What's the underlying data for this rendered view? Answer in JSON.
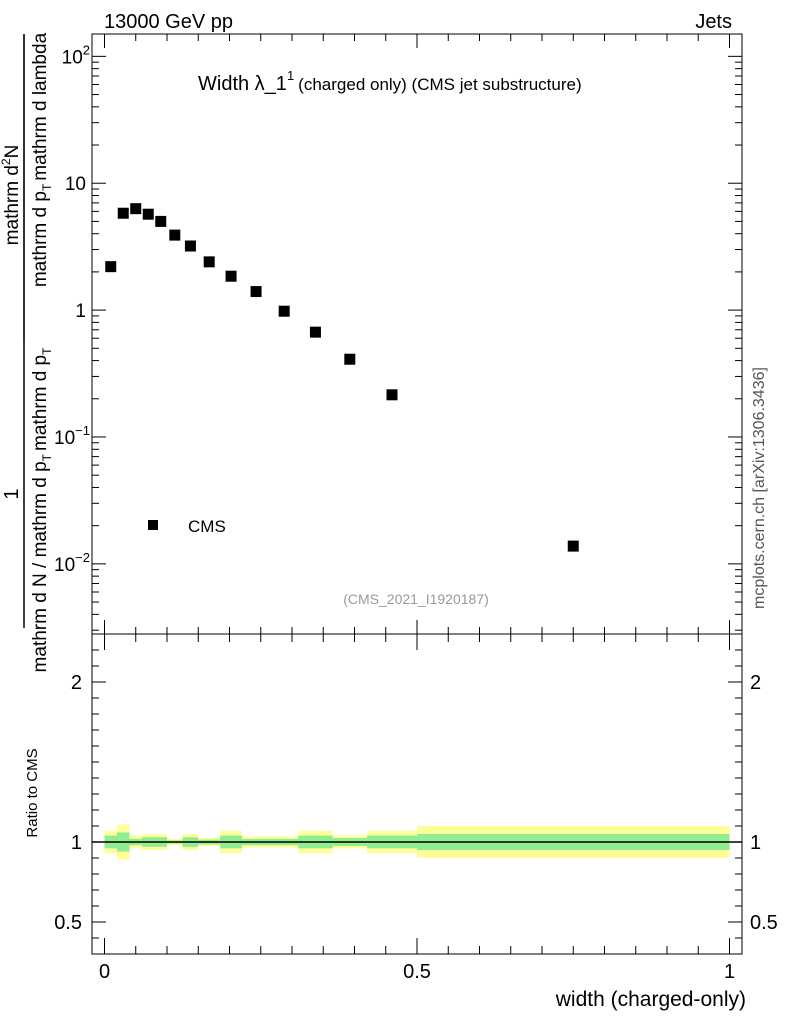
{
  "header": {
    "left": "13000 GeV pp",
    "right": "Jets"
  },
  "side_label": "mcplots.cern.ch [arXiv:1306.3436]",
  "analysis_tag": "(CMS_2021_I1920187)",
  "chart_data": [
    {
      "type": "scatter",
      "title": {
        "main": "Width λ_1",
        "superscript": "1",
        "sub": "(charged only) (CMS jet substructure)"
      },
      "ylabel": {
        "numerator": "1",
        "denominator": "mathrm d N / mathrm d p",
        "denominator_sub": "T",
        "denominator_tail": "mathrm d p",
        "denominator_tail_sub": "T",
        "inner_numerator": "mathrm d",
        "inner_numerator_sup": "2",
        "inner_numerator_tail": "N",
        "inner_denominator": "mathrm d p",
        "inner_denominator_sub": "T",
        "inner_denominator_tail": "mathrm d lambda"
      },
      "yscale": "log",
      "ylim": [
        0.0028,
        150
      ],
      "xlim": [
        -0.02,
        1.02
      ],
      "yticks": [
        {
          "value": 0.01,
          "base": "10",
          "exp": "−2"
        },
        {
          "value": 0.1,
          "base": "10",
          "exp": "−1"
        },
        {
          "value": 1,
          "label": "1"
        },
        {
          "value": 10,
          "label": "10"
        },
        {
          "value": 100,
          "base": "10",
          "exp": "2"
        }
      ],
      "legend": {
        "label": "CMS",
        "position": "bottom-left"
      },
      "series": [
        {
          "name": "CMS",
          "color": "#000000",
          "marker": "square",
          "x": [
            0.01,
            0.03,
            0.05,
            0.07,
            0.09,
            0.1125,
            0.1375,
            0.1675,
            0.2025,
            0.2425,
            0.2875,
            0.3375,
            0.3925,
            0.46,
            0.75
          ],
          "y": [
            2.2,
            5.8,
            6.3,
            5.7,
            5.0,
            3.9,
            3.2,
            2.4,
            1.85,
            1.4,
            0.98,
            0.67,
            0.41,
            0.215,
            0.0138
          ]
        }
      ]
    },
    {
      "type": "area",
      "ylabel": "Ratio to CMS",
      "xlabel": "width (charged-only)",
      "xlim": [
        -0.02,
        1.02
      ],
      "ylim": [
        0.3,
        2.3
      ],
      "xticks": [
        {
          "value": 0,
          "label": "0"
        },
        {
          "value": 0.5,
          "label": "0.5"
        },
        {
          "value": 1,
          "label": "1"
        }
      ],
      "yticks": [
        {
          "value": 0.5,
          "label": "0.5"
        },
        {
          "value": 1,
          "label": "1"
        },
        {
          "value": 2,
          "label": "2"
        }
      ],
      "reference_line": 1,
      "bins": [
        {
          "x0": 0.0,
          "x1": 0.02,
          "inner": [
            0.96,
            1.04
          ],
          "outer": [
            0.93,
            1.07
          ]
        },
        {
          "x0": 0.02,
          "x1": 0.04,
          "inner": [
            0.94,
            1.06
          ],
          "outer": [
            0.89,
            1.11
          ]
        },
        {
          "x0": 0.04,
          "x1": 0.06,
          "inner": [
            0.98,
            1.02
          ],
          "outer": [
            0.96,
            1.04
          ]
        },
        {
          "x0": 0.06,
          "x1": 0.08,
          "inner": [
            0.97,
            1.03
          ],
          "outer": [
            0.95,
            1.05
          ]
        },
        {
          "x0": 0.08,
          "x1": 0.1,
          "inner": [
            0.97,
            1.03
          ],
          "outer": [
            0.95,
            1.05
          ]
        },
        {
          "x0": 0.1,
          "x1": 0.125,
          "inner": [
            0.99,
            1.01
          ],
          "outer": [
            0.98,
            1.02
          ]
        },
        {
          "x0": 0.125,
          "x1": 0.15,
          "inner": [
            0.97,
            1.03
          ],
          "outer": [
            0.95,
            1.05
          ]
        },
        {
          "x0": 0.15,
          "x1": 0.185,
          "inner": [
            0.985,
            1.015
          ],
          "outer": [
            0.975,
            1.025
          ]
        },
        {
          "x0": 0.185,
          "x1": 0.22,
          "inner": [
            0.96,
            1.04
          ],
          "outer": [
            0.93,
            1.07
          ]
        },
        {
          "x0": 0.22,
          "x1": 0.265,
          "inner": [
            0.98,
            1.02
          ],
          "outer": [
            0.965,
            1.035
          ]
        },
        {
          "x0": 0.265,
          "x1": 0.31,
          "inner": [
            0.98,
            1.02
          ],
          "outer": [
            0.965,
            1.035
          ]
        },
        {
          "x0": 0.31,
          "x1": 0.365,
          "inner": [
            0.96,
            1.04
          ],
          "outer": [
            0.93,
            1.07
          ]
        },
        {
          "x0": 0.365,
          "x1": 0.42,
          "inner": [
            0.975,
            1.025
          ],
          "outer": [
            0.96,
            1.04
          ]
        },
        {
          "x0": 0.42,
          "x1": 0.5,
          "inner": [
            0.96,
            1.04
          ],
          "outer": [
            0.93,
            1.07
          ]
        },
        {
          "x0": 0.5,
          "x1": 1.0,
          "inner": [
            0.95,
            1.05
          ],
          "outer": [
            0.9,
            1.1
          ]
        }
      ],
      "colors": {
        "inner": "#90ee90",
        "outer": "#ffff99"
      }
    }
  ]
}
